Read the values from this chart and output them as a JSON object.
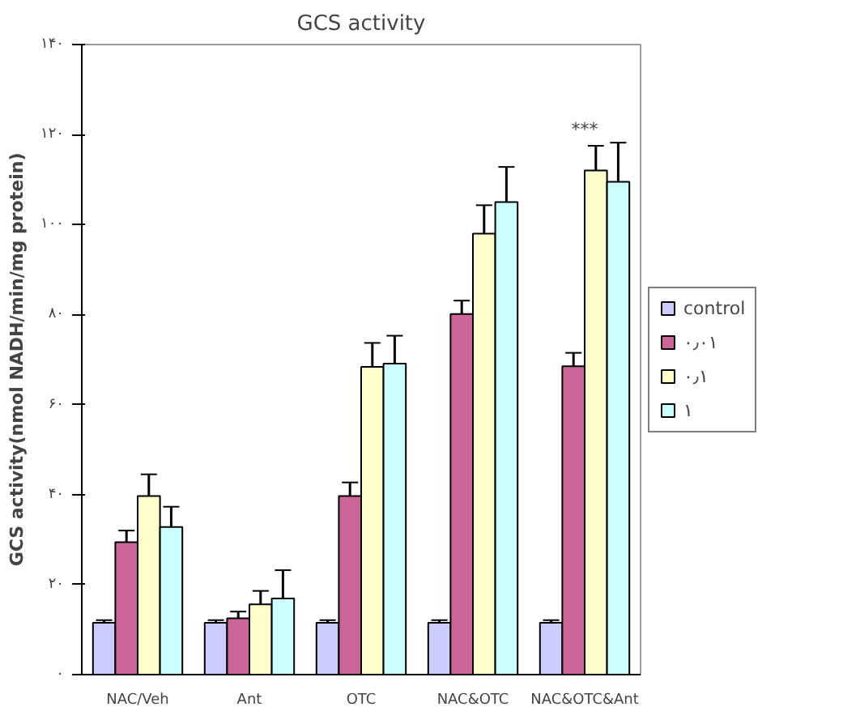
{
  "chart_data": {
    "type": "bar",
    "title": "GCS activity",
    "ylabel": "GCS activity(nmol NADH/min/mg protein)",
    "categories": [
      "NAC/Veh",
      "Ant",
      "OTC",
      "NAC&OTC",
      "NAC&OTC&Ant"
    ],
    "series": [
      {
        "name": "control",
        "color": "#ccccff",
        "values": [
          11.5,
          11.5,
          11.5,
          11.5,
          11.5
        ],
        "errors": [
          0.6,
          0.6,
          0.6,
          0.6,
          0.6
        ]
      },
      {
        "name": "۰٫۰۱",
        "color": "#cc6699",
        "values": [
          29.4,
          12.5,
          39.7,
          80.1,
          68.5
        ],
        "errors": [
          2.6,
          1.5,
          3,
          3,
          3
        ]
      },
      {
        "name": "۰٫۱",
        "color": "#ffffcc",
        "values": [
          39.7,
          15.6,
          68.4,
          98,
          112
        ],
        "errors": [
          4.8,
          3,
          5.3,
          6.3,
          5.5
        ]
      },
      {
        "name": "۱",
        "color": "#ccffff",
        "values": [
          32.8,
          16.9,
          69.1,
          105,
          109.5
        ],
        "errors": [
          4.5,
          6.3,
          6.2,
          7.8,
          8.7
        ]
      }
    ],
    "ylim": [
      0,
      140
    ],
    "yticks": [
      {
        "value": 0,
        "label": "۰"
      },
      {
        "value": 20,
        "label": "۲۰"
      },
      {
        "value": 40,
        "label": "۴۰"
      },
      {
        "value": 60,
        "label": "۶۰"
      },
      {
        "value": 80,
        "label": "۸۰"
      },
      {
        "value": 100,
        "label": "۱۰۰"
      },
      {
        "value": 120,
        "label": "۱۲۰"
      },
      {
        "value": 140,
        "label": "۱۴۰"
      }
    ],
    "annotations": [
      "***"
    ],
    "grid": false,
    "legend": "right"
  }
}
